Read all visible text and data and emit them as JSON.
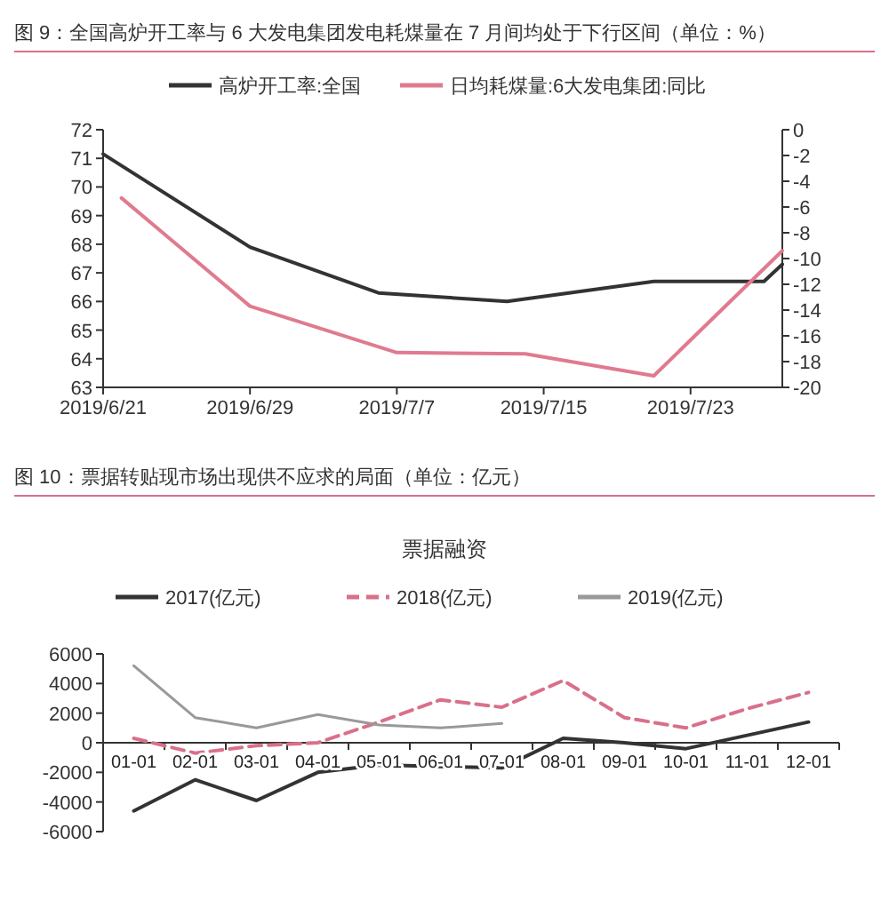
{
  "chart_data": [
    {
      "type": "line",
      "title": "图 9：全国高炉开工率与 6 大发电集团发电耗煤量在 7 月间均处于下行区间（单位：%）",
      "legend": "top",
      "grid": false,
      "xlim": [
        "2019-06-21",
        "2019-07-28"
      ],
      "xticks": [
        {
          "value": "2019-06-21",
          "label": "2019/6/21"
        },
        {
          "value": "2019-06-29",
          "label": "2019/6/29"
        },
        {
          "value": "2019-07-07",
          "label": "2019/7/7"
        },
        {
          "value": "2019-07-15",
          "label": "2019/7/15"
        },
        {
          "value": "2019-07-23",
          "label": "2019/7/23"
        }
      ],
      "ylim": [
        63,
        72
      ],
      "yticks": [
        63,
        64,
        65,
        66,
        67,
        68,
        69,
        70,
        71,
        72
      ],
      "y2lim": [
        -20,
        0
      ],
      "y2ticks": [
        -20,
        -18,
        -16,
        -14,
        -12,
        -10,
        -8,
        -6,
        -4,
        -2,
        0
      ],
      "series": [
        {
          "name": "高炉开工率:全国",
          "color": "#333333",
          "x": [
            "2019-06-21",
            "2019-06-29",
            "2019-07-06",
            "2019-07-13",
            "2019-07-21",
            "2019-07-27",
            "2019-07-28"
          ],
          "values": [
            71.15,
            67.9,
            66.3,
            66.0,
            66.7,
            66.7,
            67.3
          ]
        },
        {
          "name": "日均耗煤量:6大发电集团:同比",
          "color": "#e07a8f",
          "axis": "y2",
          "x": [
            "2019-06-22",
            "2019-06-29",
            "2019-07-07",
            "2019-07-14",
            "2019-07-21",
            "2019-07-28"
          ],
          "values": [
            -5.3,
            -13.7,
            -17.3,
            -17.4,
            -19.1,
            -9.4
          ]
        }
      ]
    },
    {
      "type": "line",
      "title": "图 10：票据转贴现市场出现供不应求的局面（单位：亿元）",
      "subtitle": "票据融资",
      "legend": "top",
      "grid": false,
      "categories": [
        "01-01",
        "02-01",
        "03-01",
        "04-01",
        "05-01",
        "06-01",
        "07-01",
        "08-01",
        "09-01",
        "10-01",
        "11-01",
        "12-01"
      ],
      "ylim": [
        -6000,
        6000
      ],
      "yticks": [
        -6000,
        -4000,
        -2000,
        0,
        2000,
        4000,
        6000
      ],
      "series": [
        {
          "name": "2017(亿元)",
          "color": "#333333",
          "line_style": "solid",
          "values": [
            -4600,
            -2500,
            -3900,
            -2000,
            -1500,
            -1600,
            -1700,
            300,
            0,
            -400,
            500,
            1400
          ]
        },
        {
          "name": "2018(亿元)",
          "color": "#d9708a",
          "line_style": "dashed",
          "values": [
            300,
            -700,
            -200,
            0,
            1400,
            2900,
            2400,
            4200,
            1700,
            1000,
            2300,
            3400
          ]
        },
        {
          "name": "2019(亿元)",
          "color": "#999999",
          "line_style": "solid",
          "values": [
            5200,
            1700,
            1000,
            1900,
            1200,
            1000,
            1300,
            null,
            null,
            null,
            null,
            null
          ]
        }
      ]
    }
  ]
}
